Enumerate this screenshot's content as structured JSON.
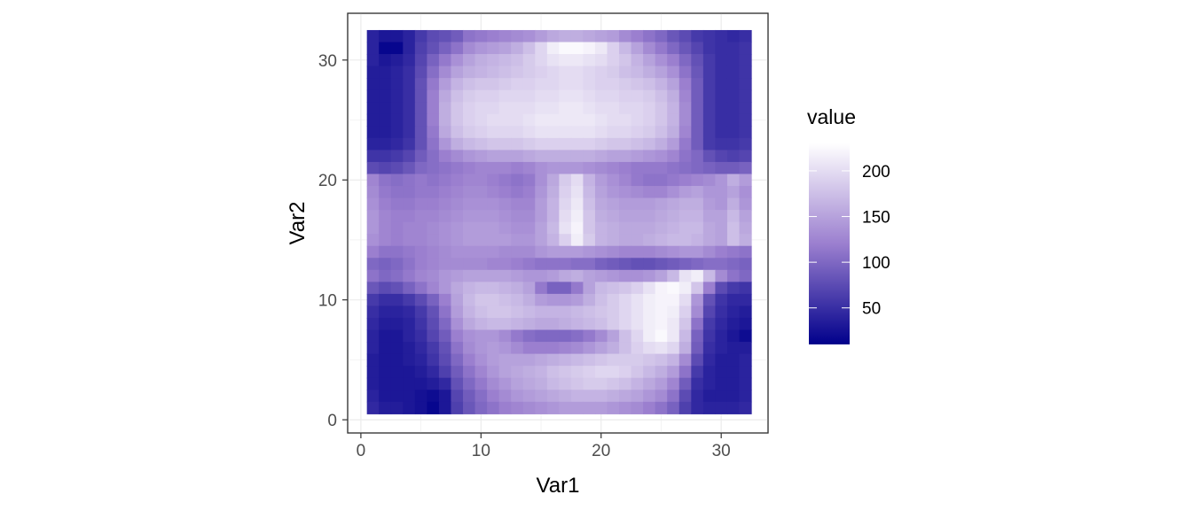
{
  "chart_data": {
    "type": "heatmap",
    "title": "",
    "xlabel": "Var1",
    "ylabel": "Var2",
    "x": [
      1,
      2,
      3,
      4,
      5,
      6,
      7,
      8,
      9,
      10,
      11,
      12,
      13,
      14,
      15,
      16,
      17,
      18,
      19,
      20,
      21,
      22,
      23,
      24,
      25,
      26,
      27,
      28,
      29,
      30,
      31,
      32
    ],
    "y": [
      1,
      2,
      3,
      4,
      5,
      6,
      7,
      8,
      9,
      10,
      11,
      12,
      13,
      14,
      15,
      16,
      17,
      18,
      19,
      20,
      21,
      22,
      23,
      24,
      25,
      26,
      27,
      28,
      29,
      30,
      31,
      32
    ],
    "xlim": [
      0.5,
      32.5
    ],
    "ylim": [
      0.5,
      32.5
    ],
    "x_ticks": [
      0,
      10,
      20,
      30
    ],
    "y_ticks": [
      0,
      10,
      20,
      30
    ],
    "grid": true,
    "legend": {
      "title": "value",
      "position": "right",
      "range": [
        10,
        230
      ],
      "breaks": [
        50,
        100,
        150,
        200
      ],
      "low_color": "#00008b",
      "high_color": "#ffffff"
    },
    "values_row_order": "Var2 from 32 (top) down to 1 (bottom); each row lists Var1 = 1..32",
    "values": [
      [
        40,
        30,
        30,
        40,
        60,
        75,
        80,
        90,
        110,
        115,
        120,
        125,
        130,
        135,
        145,
        155,
        160,
        160,
        155,
        150,
        145,
        130,
        120,
        110,
        100,
        85,
        75,
        60,
        55,
        50,
        45,
        50
      ],
      [
        40,
        15,
        15,
        40,
        65,
        80,
        95,
        110,
        130,
        140,
        145,
        150,
        160,
        175,
        195,
        215,
        225,
        225,
        220,
        210,
        190,
        170,
        150,
        130,
        115,
        100,
        85,
        70,
        55,
        50,
        50,
        55
      ],
      [
        40,
        30,
        35,
        45,
        70,
        95,
        115,
        135,
        150,
        160,
        165,
        170,
        175,
        185,
        195,
        205,
        210,
        210,
        205,
        200,
        190,
        180,
        165,
        150,
        135,
        120,
        100,
        80,
        60,
        50,
        50,
        55
      ],
      [
        35,
        35,
        40,
        50,
        75,
        105,
        130,
        150,
        160,
        165,
        170,
        175,
        180,
        185,
        190,
        195,
        200,
        200,
        195,
        190,
        185,
        175,
        170,
        160,
        150,
        135,
        110,
        85,
        60,
        50,
        50,
        55
      ],
      [
        35,
        35,
        40,
        50,
        80,
        115,
        145,
        165,
        175,
        180,
        180,
        185,
        190,
        190,
        195,
        195,
        200,
        200,
        195,
        190,
        190,
        185,
        180,
        175,
        165,
        150,
        120,
        90,
        60,
        50,
        50,
        55
      ],
      [
        35,
        35,
        40,
        50,
        80,
        120,
        155,
        175,
        185,
        190,
        190,
        195,
        195,
        195,
        200,
        200,
        205,
        205,
        200,
        195,
        195,
        190,
        190,
        185,
        175,
        160,
        125,
        90,
        60,
        50,
        50,
        55
      ],
      [
        35,
        35,
        40,
        50,
        80,
        120,
        160,
        180,
        190,
        195,
        195,
        200,
        200,
        200,
        205,
        205,
        210,
        210,
        205,
        200,
        200,
        195,
        195,
        190,
        180,
        165,
        130,
        90,
        60,
        50,
        50,
        55
      ],
      [
        35,
        35,
        40,
        50,
        80,
        120,
        160,
        180,
        190,
        195,
        200,
        200,
        200,
        205,
        210,
        210,
        210,
        210,
        210,
        205,
        200,
        200,
        195,
        190,
        180,
        165,
        130,
        90,
        60,
        50,
        50,
        55
      ],
      [
        35,
        35,
        40,
        50,
        80,
        115,
        155,
        175,
        185,
        190,
        195,
        195,
        195,
        200,
        205,
        205,
        205,
        205,
        205,
        200,
        195,
        195,
        190,
        185,
        175,
        160,
        125,
        90,
        60,
        50,
        50,
        55
      ],
      [
        40,
        40,
        45,
        55,
        80,
        110,
        140,
        160,
        170,
        175,
        180,
        180,
        180,
        185,
        190,
        190,
        190,
        190,
        190,
        185,
        180,
        180,
        175,
        170,
        160,
        145,
        115,
        90,
        60,
        55,
        55,
        60
      ],
      [
        55,
        55,
        60,
        70,
        90,
        105,
        120,
        130,
        140,
        145,
        150,
        150,
        150,
        155,
        160,
        160,
        160,
        160,
        160,
        155,
        150,
        150,
        145,
        140,
        135,
        125,
        110,
        100,
        80,
        70,
        65,
        70
      ],
      [
        75,
        70,
        75,
        85,
        100,
        105,
        110,
        115,
        120,
        125,
        125,
        125,
        120,
        125,
        135,
        140,
        140,
        140,
        135,
        130,
        125,
        120,
        115,
        115,
        115,
        110,
        105,
        100,
        95,
        90,
        90,
        95
      ],
      [
        125,
        110,
        105,
        110,
        115,
        110,
        115,
        120,
        125,
        125,
        120,
        115,
        110,
        115,
        135,
        155,
        185,
        200,
        165,
        145,
        135,
        125,
        115,
        110,
        110,
        115,
        120,
        125,
        130,
        140,
        160,
        145
      ],
      [
        130,
        115,
        110,
        110,
        115,
        115,
        120,
        125,
        130,
        130,
        125,
        120,
        115,
        120,
        140,
        160,
        190,
        205,
        170,
        150,
        140,
        135,
        130,
        125,
        125,
        135,
        145,
        150,
        140,
        140,
        150,
        135
      ],
      [
        135,
        120,
        115,
        115,
        120,
        120,
        125,
        130,
        135,
        135,
        135,
        130,
        125,
        125,
        145,
        165,
        195,
        210,
        175,
        155,
        150,
        145,
        145,
        145,
        150,
        155,
        160,
        160,
        145,
        140,
        160,
        140
      ],
      [
        140,
        125,
        120,
        120,
        125,
        125,
        130,
        135,
        140,
        140,
        140,
        135,
        130,
        130,
        145,
        165,
        200,
        215,
        180,
        160,
        155,
        150,
        150,
        150,
        155,
        160,
        165,
        165,
        150,
        150,
        170,
        150
      ],
      [
        140,
        125,
        120,
        125,
        125,
        130,
        135,
        140,
        145,
        145,
        145,
        140,
        135,
        135,
        150,
        170,
        205,
        220,
        180,
        165,
        160,
        155,
        155,
        155,
        160,
        165,
        170,
        170,
        155,
        150,
        175,
        155
      ],
      [
        135,
        125,
        120,
        125,
        125,
        130,
        135,
        140,
        145,
        145,
        145,
        145,
        140,
        140,
        150,
        165,
        190,
        215,
        185,
        165,
        160,
        155,
        155,
        160,
        165,
        170,
        170,
        165,
        155,
        150,
        175,
        160
      ],
      [
        120,
        110,
        110,
        115,
        120,
        125,
        130,
        135,
        135,
        135,
        135,
        130,
        130,
        130,
        140,
        145,
        145,
        145,
        140,
        135,
        130,
        125,
        125,
        125,
        130,
        135,
        140,
        140,
        130,
        120,
        115,
        110
      ],
      [
        100,
        95,
        100,
        110,
        120,
        125,
        130,
        130,
        130,
        130,
        125,
        125,
        120,
        115,
        110,
        110,
        110,
        105,
        105,
        95,
        90,
        85,
        80,
        80,
        85,
        90,
        95,
        100,
        105,
        105,
        100,
        95
      ],
      [
        110,
        100,
        105,
        115,
        125,
        130,
        140,
        145,
        150,
        150,
        150,
        150,
        145,
        140,
        140,
        145,
        155,
        160,
        150,
        145,
        140,
        135,
        135,
        140,
        150,
        170,
        205,
        215,
        170,
        130,
        110,
        100
      ],
      [
        85,
        75,
        80,
        95,
        110,
        125,
        140,
        155,
        165,
        170,
        170,
        165,
        160,
        150,
        115,
        95,
        95,
        115,
        150,
        170,
        175,
        180,
        190,
        205,
        220,
        225,
        215,
        180,
        120,
        75,
        60,
        55
      ],
      [
        60,
        50,
        50,
        60,
        75,
        95,
        120,
        150,
        170,
        180,
        180,
        175,
        170,
        160,
        145,
        140,
        140,
        145,
        160,
        175,
        185,
        195,
        205,
        215,
        220,
        220,
        200,
        140,
        80,
        55,
        45,
        45
      ],
      [
        50,
        40,
        40,
        45,
        60,
        80,
        110,
        145,
        165,
        175,
        180,
        180,
        175,
        170,
        165,
        165,
        165,
        170,
        175,
        180,
        185,
        195,
        205,
        215,
        220,
        215,
        190,
        130,
        70,
        50,
        40,
        35
      ],
      [
        45,
        35,
        35,
        40,
        55,
        75,
        100,
        135,
        155,
        165,
        170,
        170,
        165,
        160,
        155,
        155,
        160,
        165,
        170,
        175,
        185,
        195,
        205,
        215,
        220,
        210,
        180,
        110,
        60,
        45,
        35,
        30
      ],
      [
        40,
        30,
        30,
        40,
        50,
        70,
        90,
        120,
        135,
        140,
        140,
        130,
        115,
        105,
        100,
        100,
        100,
        105,
        115,
        130,
        150,
        175,
        195,
        215,
        225,
        210,
        170,
        95,
        55,
        40,
        30,
        20
      ],
      [
        40,
        30,
        30,
        35,
        45,
        60,
        80,
        110,
        130,
        140,
        145,
        140,
        130,
        120,
        120,
        120,
        125,
        130,
        140,
        150,
        160,
        175,
        190,
        200,
        205,
        195,
        160,
        90,
        50,
        40,
        35,
        35
      ],
      [
        35,
        30,
        30,
        35,
        40,
        55,
        75,
        100,
        120,
        135,
        145,
        150,
        150,
        150,
        155,
        160,
        165,
        170,
        175,
        180,
        185,
        185,
        185,
        180,
        175,
        165,
        130,
        75,
        45,
        35,
        35,
        40
      ],
      [
        35,
        30,
        30,
        30,
        35,
        45,
        65,
        90,
        110,
        125,
        140,
        150,
        155,
        160,
        165,
        175,
        180,
        185,
        190,
        195,
        195,
        190,
        180,
        170,
        160,
        145,
        110,
        60,
        40,
        35,
        35,
        40
      ],
      [
        35,
        30,
        30,
        30,
        30,
        35,
        45,
        80,
        100,
        115,
        130,
        140,
        150,
        155,
        160,
        170,
        175,
        180,
        185,
        185,
        180,
        175,
        165,
        155,
        145,
        125,
        90,
        50,
        40,
        35,
        35,
        40
      ],
      [
        40,
        30,
        30,
        30,
        25,
        20,
        30,
        70,
        90,
        105,
        120,
        130,
        140,
        145,
        150,
        155,
        160,
        165,
        165,
        165,
        160,
        155,
        150,
        140,
        130,
        110,
        75,
        45,
        35,
        35,
        35,
        40
      ],
      [
        45,
        35,
        35,
        30,
        25,
        15,
        30,
        65,
        85,
        100,
        110,
        120,
        125,
        130,
        135,
        140,
        145,
        145,
        145,
        145,
        140,
        135,
        130,
        120,
        110,
        95,
        65,
        45,
        40,
        40,
        40,
        45
      ]
    ]
  }
}
